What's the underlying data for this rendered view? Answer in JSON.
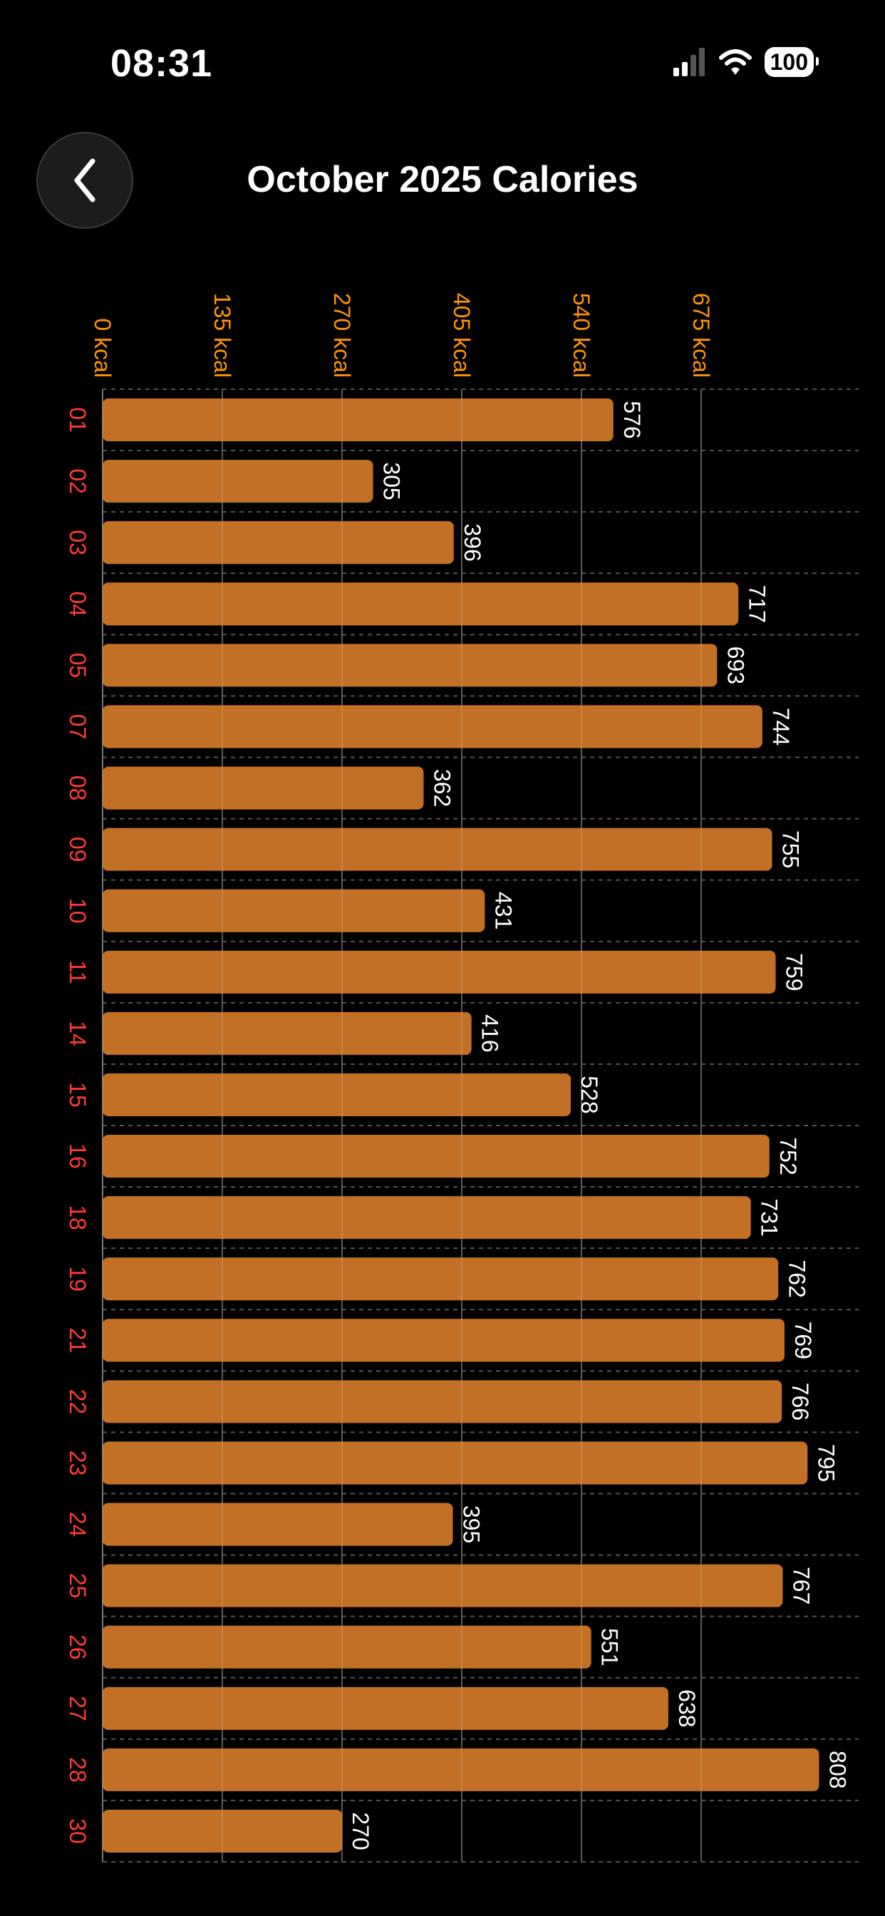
{
  "status_bar": {
    "time": "08:31",
    "battery": "100",
    "icons": [
      "signal-icon",
      "wifi-icon",
      "battery-icon"
    ]
  },
  "header": {
    "title": "October 2025 Calories",
    "back_icon": "chevron-left-icon"
  },
  "colors": {
    "bar": "#CC7628",
    "tick_label": "#FF9500",
    "day_label": "#FF3B30",
    "value_label": "#FFFFFF"
  },
  "chart_data": {
    "type": "bar",
    "orientation": "horizontal",
    "title": "October 2025 Calories",
    "categories": [
      "01",
      "02",
      "03",
      "04",
      "05",
      "07",
      "08",
      "09",
      "10",
      "11",
      "14",
      "15",
      "16",
      "18",
      "19",
      "21",
      "22",
      "23",
      "24",
      "25",
      "26",
      "27",
      "28",
      "30"
    ],
    "values": [
      576,
      305,
      396,
      717,
      693,
      744,
      362,
      755,
      431,
      759,
      416,
      528,
      752,
      731,
      762,
      769,
      766,
      795,
      395,
      767,
      551,
      638,
      808,
      270
    ],
    "xticks": [
      0,
      135,
      270,
      405,
      540,
      675
    ],
    "xtick_labels": [
      "0 kcal",
      "135 kcal",
      "270 kcal",
      "405 kcal",
      "540 kcal",
      "675 kcal"
    ],
    "xlim": [
      0,
      850
    ],
    "grid": true,
    "data_labels": true
  }
}
